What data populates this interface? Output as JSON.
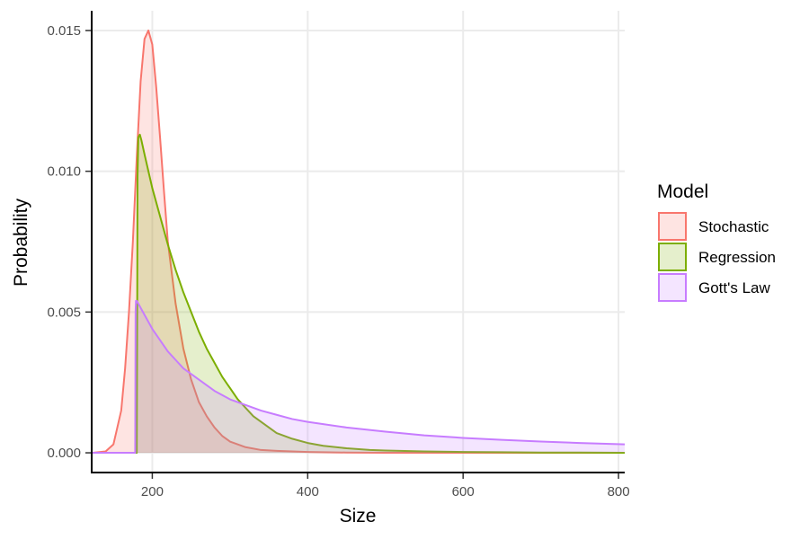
{
  "chart_data": {
    "type": "area",
    "xlabel": "Size",
    "ylabel": "Probability",
    "xlim": [
      122,
      808
    ],
    "ylim": [
      -0.0007,
      0.0157
    ],
    "x_ticks": [
      200,
      400,
      600,
      800
    ],
    "x_tick_labels": [
      "200",
      "400",
      "600",
      "800"
    ],
    "y_ticks": [
      0.0,
      0.005,
      0.01,
      0.015
    ],
    "y_tick_labels": [
      "0.000",
      "0.005",
      "0.010",
      "0.015"
    ],
    "grid": true,
    "legend": {
      "title": "Model",
      "position": "right"
    },
    "series": [
      {
        "name": "Stochastic",
        "line_color": "#F8766D",
        "fill_color": "#F8766D",
        "x": [
          122,
          140,
          150,
          160,
          165,
          170,
          175,
          180,
          185,
          190,
          195,
          200,
          205,
          210,
          215,
          220,
          230,
          240,
          250,
          260,
          270,
          280,
          290,
          300,
          320,
          340,
          360,
          400,
          450,
          500,
          600,
          700,
          808
        ],
        "y": [
          0.0,
          5e-05,
          0.0003,
          0.0015,
          0.003,
          0.005,
          0.0075,
          0.0105,
          0.0132,
          0.0147,
          0.015,
          0.0145,
          0.013,
          0.0112,
          0.0093,
          0.0075,
          0.0053,
          0.0037,
          0.0026,
          0.0018,
          0.0013,
          0.0009,
          0.0006,
          0.0004,
          0.0002,
          0.0001,
          7e-05,
          3e-05,
          1e-05,
          0.0,
          0.0,
          0.0,
          0.0
        ]
      },
      {
        "name": "Regression",
        "line_color": "#7CAE00",
        "fill_color": "#7CAE00",
        "x": [
          122,
          180,
          180.5,
          181,
          182,
          184,
          186,
          190,
          195,
          200,
          210,
          220,
          230,
          240,
          250,
          260,
          270,
          280,
          290,
          300,
          310,
          320,
          330,
          340,
          350,
          360,
          380,
          400,
          420,
          450,
          480,
          500,
          550,
          600,
          650,
          700,
          750,
          808
        ],
        "y": [
          0.0,
          0.0,
          0.004,
          0.0098,
          0.0112,
          0.0113,
          0.0111,
          0.0106,
          0.01,
          0.0094,
          0.0084,
          0.0074,
          0.0065,
          0.0057,
          0.005,
          0.0043,
          0.0037,
          0.0032,
          0.0027,
          0.0023,
          0.0019,
          0.0016,
          0.0013,
          0.0011,
          0.0009,
          0.0007,
          0.0005,
          0.00035,
          0.00025,
          0.00016,
          0.0001,
          8e-05,
          5e-05,
          3e-05,
          2e-05,
          1e-05,
          1e-05,
          0.0
        ]
      },
      {
        "name": "Gott's Law",
        "line_color": "#C77CFF",
        "fill_color": "#C77CFF",
        "x": [
          122,
          178,
          178.5,
          179,
          180,
          190,
          200,
          210,
          220,
          230,
          240,
          250,
          260,
          270,
          280,
          300,
          320,
          340,
          360,
          380,
          400,
          450,
          500,
          550,
          600,
          650,
          700,
          750,
          808
        ],
        "y": [
          0.0,
          0.0,
          0.005,
          0.0054,
          0.0054,
          0.0049,
          0.0044,
          0.004,
          0.0036,
          0.0033,
          0.003,
          0.0028,
          0.0026,
          0.0024,
          0.0022,
          0.0019,
          0.0017,
          0.0015,
          0.00135,
          0.0012,
          0.0011,
          0.0009,
          0.00075,
          0.00062,
          0.00053,
          0.00046,
          0.0004,
          0.00035,
          0.0003
        ]
      }
    ]
  }
}
